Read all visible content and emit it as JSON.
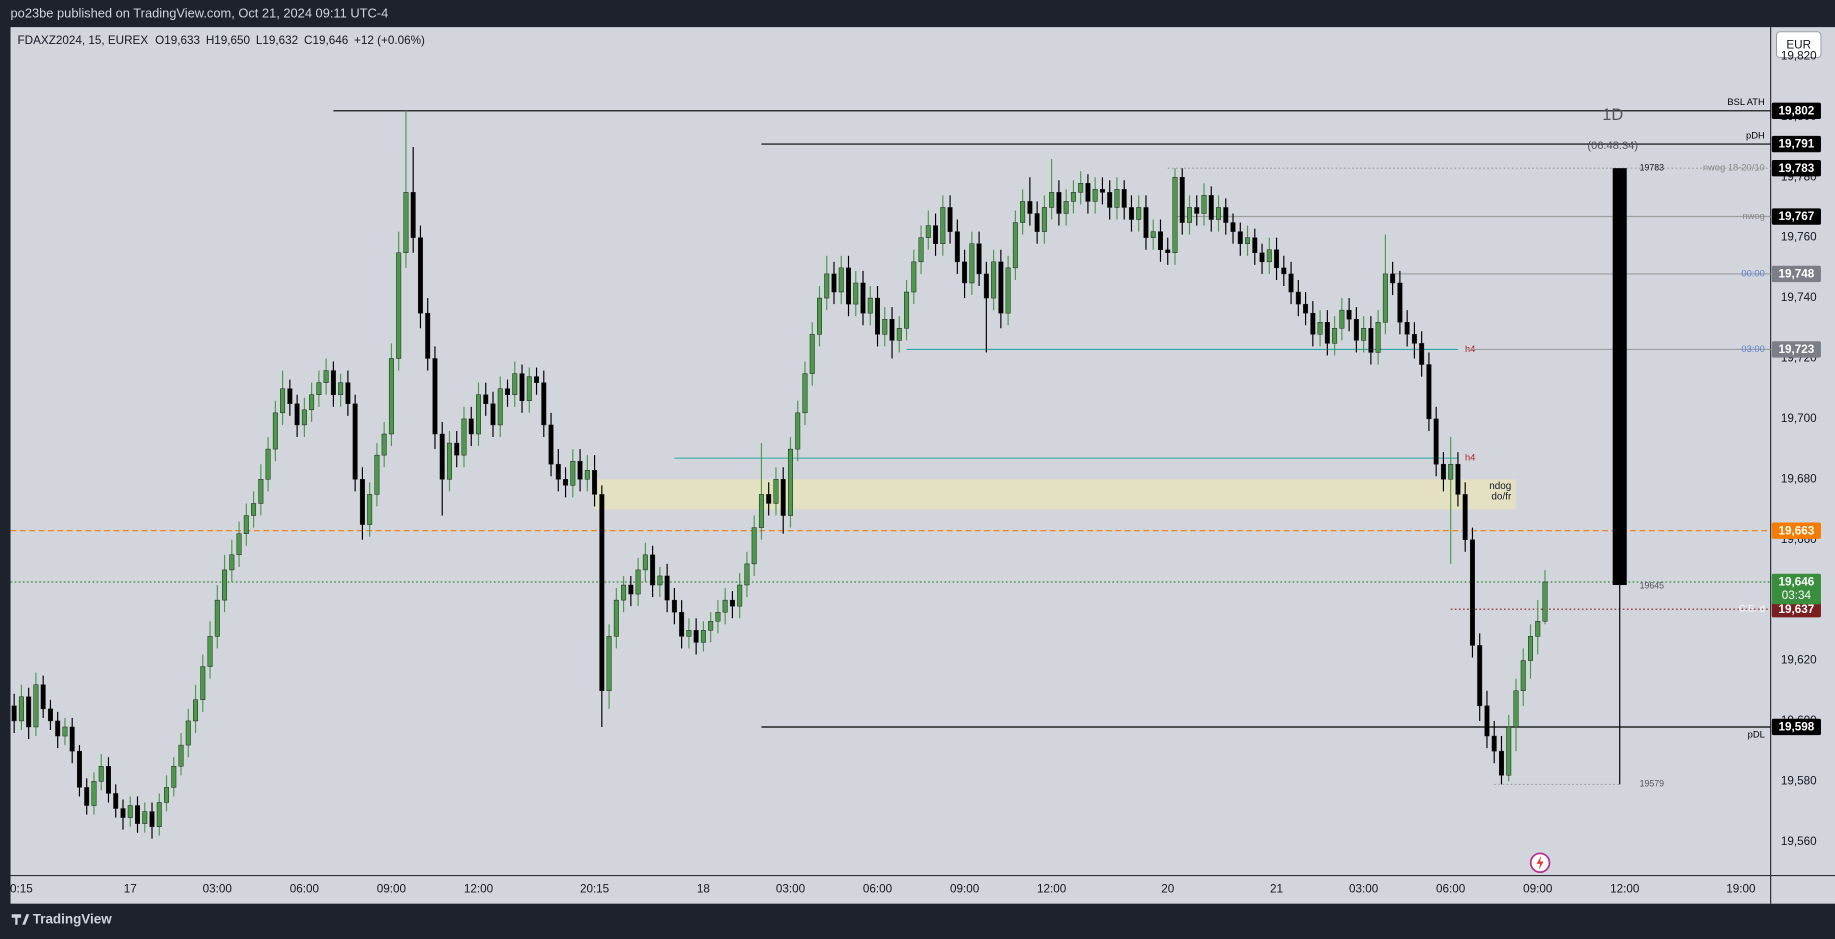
{
  "header": {
    "title": "po23be published on TradingView.com, Oct 21, 2024 09:11 UTC-4"
  },
  "footer": {
    "brand": "TradingView"
  },
  "chart_data": {
    "type": "candlestick",
    "legend": {
      "symbol": "FDAXZ2024, 15, EUREX",
      "open": "O19,633",
      "high": "H19,650",
      "low": "L19,632",
      "close": "C19,646",
      "change": "+12 (+0.06%)"
    },
    "currency": "EUR",
    "up_color": "#4a9a4a",
    "down_color": "#000000",
    "open": [
      19605,
      19600,
      19608,
      19598,
      19612,
      19604,
      19600,
      19595,
      19598,
      19590,
      19578,
      19572,
      19580,
      19585,
      19576,
      19571,
      19568,
      19572,
      19566,
      19570,
      19565,
      19573,
      19578,
      19585,
      19592,
      19600,
      19607,
      19618,
      19628,
      19640,
      19650,
      19655,
      19662,
      19668,
      19672,
      19680,
      19690,
      19702,
      19710,
      19705,
      19698,
      19703,
      19708,
      19712,
      19716,
      19708,
      19712,
      19705,
      19680,
      19665,
      19675,
      19688,
      19695,
      19720,
      19755,
      19775,
      19760,
      19735,
      19720,
      19695,
      19680,
      19692,
      19688,
      19700,
      19695,
      19708,
      19705,
      19698,
      19710,
      19708,
      19715,
      19706,
      19714,
      19712,
      19698,
      19685,
      19680,
      19678,
      19686,
      19680,
      19683,
      19675,
      19610,
      19628,
      19640,
      19645,
      19642,
      19650,
      19655,
      19645,
      19648,
      19640,
      19636,
      19628,
      19630,
      19626,
      19630,
      19633,
      19636,
      19640,
      19638,
      19645,
      19652,
      19664,
      19675,
      19672,
      19680,
      19668,
      19690,
      19702,
      19715,
      19728,
      19740,
      19748,
      19742,
      19750,
      19738,
      19745,
      19735,
      19740,
      19728,
      19733,
      19726,
      19730,
      19742,
      19752,
      19760,
      19764,
      19758,
      19770,
      19762,
      19752,
      19745,
      19758,
      19748,
      19740,
      19752,
      19735,
      19750,
      19765,
      19772,
      19768,
      19762,
      19770,
      19775,
      19768,
      19772,
      19775,
      19778,
      19772,
      19776,
      19775,
      19770,
      19776,
      19770,
      19766,
      19770,
      19760,
      19762,
      19756,
      19755,
      19780,
      19765,
      19770,
      19768,
      19774,
      19766,
      19770,
      19765,
      19762,
      19758,
      19760,
      19755,
      19752,
      19756,
      19750,
      19748,
      19742,
      19738,
      19735,
      19728,
      19732,
      19725,
      19730,
      19736,
      19733,
      19726,
      19730,
      19722,
      19732,
      19748,
      19745,
      19732,
      19728,
      19725,
      19718,
      19700,
      19685,
      19680,
      19685,
      19675,
      19660,
      19625,
      19605,
      19595,
      19590,
      19582,
      19598,
      19610,
      19620,
      19628,
      19633
    ],
    "high": [
      19609,
      19612,
      19611,
      19616,
      19615,
      19607,
      19603,
      19601,
      19601,
      19592,
      19581,
      19583,
      19589,
      19588,
      19579,
      19574,
      19575,
      19575,
      19573,
      19573,
      19576,
      19582,
      19588,
      19596,
      19604,
      19612,
      19622,
      19633,
      19645,
      19655,
      19660,
      19666,
      19672,
      19676,
      19685,
      19694,
      19706,
      19716,
      19713,
      19708,
      19707,
      19712,
      19716,
      19720,
      19719,
      19715,
      19716,
      19708,
      19684,
      19679,
      19692,
      19699,
      19725,
      19762,
      19802,
      19790,
      19764,
      19740,
      19724,
      19699,
      19696,
      19696,
      19704,
      19704,
      19712,
      19712,
      19709,
      19714,
      19713,
      19719,
      19718,
      19717,
      19717,
      19716,
      19702,
      19690,
      19684,
      19690,
      19690,
      19688,
      19688,
      19678,
      19632,
      19644,
      19648,
      19648,
      19654,
      19659,
      19658,
      19651,
      19652,
      19644,
      19640,
      19634,
      19634,
      19633,
      19636,
      19640,
      19644,
      19643,
      19649,
      19656,
      19668,
      19692,
      19679,
      19684,
      19684,
      19694,
      19706,
      19719,
      19732,
      19744,
      19754,
      19752,
      19754,
      19754,
      19749,
      19749,
      19744,
      19744,
      19737,
      19737,
      19734,
      19746,
      19756,
      19764,
      19769,
      19768,
      19774,
      19774,
      19766,
      19756,
      19762,
      19762,
      19752,
      19756,
      19756,
      19754,
      19769,
      19776,
      19780,
      19772,
      19774,
      19786,
      19779,
      19776,
      19779,
      19782,
      19781,
      19780,
      19780,
      19779,
      19780,
      19779,
      19774,
      19774,
      19774,
      19766,
      19766,
      19760,
      19783,
      19783,
      19774,
      19774,
      19778,
      19777,
      19774,
      19773,
      19768,
      19765,
      19764,
      19763,
      19758,
      19760,
      19760,
      19754,
      19752,
      19746,
      19742,
      19739,
      19736,
      19736,
      19734,
      19740,
      19740,
      19737,
      19734,
      19734,
      19736,
      19761,
      19752,
      19749,
      19736,
      19732,
      19729,
      19722,
      19704,
      19689,
      19694,
      19689,
      19679,
      19664,
      19629,
      19610,
      19600,
      19595,
      19602,
      19614,
      19624,
      19632,
      19640,
      19650
    ],
    "low": [
      19596,
      19597,
      19594,
      19595,
      19601,
      19597,
      19591,
      19592,
      19586,
      19575,
      19569,
      19569,
      19577,
      19573,
      19568,
      19564,
      19565,
      19563,
      19563,
      19561,
      19562,
      19570,
      19575,
      19582,
      19588,
      19596,
      19603,
      19614,
      19624,
      19636,
      19646,
      19651,
      19658,
      19664,
      19668,
      19676,
      19686,
      19698,
      19701,
      19694,
      19694,
      19699,
      19704,
      19708,
      19704,
      19704,
      19701,
      19676,
      19660,
      19661,
      19671,
      19684,
      19691,
      19716,
      19750,
      19755,
      19730,
      19716,
      19690,
      19668,
      19676,
      19684,
      19684,
      19691,
      19691,
      19701,
      19694,
      19694,
      19704,
      19704,
      19702,
      19702,
      19708,
      19694,
      19681,
      19676,
      19674,
      19674,
      19676,
      19676,
      19671,
      19598,
      19604,
      19624,
      19636,
      19638,
      19638,
      19646,
      19641,
      19641,
      19636,
      19632,
      19624,
      19624,
      19622,
      19623,
      19626,
      19629,
      19632,
      19634,
      19634,
      19641,
      19648,
      19660,
      19668,
      19668,
      19662,
      19664,
      19686,
      19698,
      19711,
      19724,
      19736,
      19738,
      19738,
      19734,
      19734,
      19731,
      19731,
      19724,
      19724,
      19720,
      19722,
      19726,
      19738,
      19748,
      19756,
      19754,
      19754,
      19758,
      19748,
      19740,
      19741,
      19744,
      19722,
      19736,
      19730,
      19731,
      19746,
      19761,
      19764,
      19758,
      19758,
      19766,
      19764,
      19764,
      19768,
      19771,
      19768,
      19768,
      19771,
      19766,
      19766,
      19766,
      19762,
      19762,
      19756,
      19756,
      19752,
      19751,
      19751,
      19761,
      19761,
      19764,
      19764,
      19762,
      19762,
      19761,
      19758,
      19754,
      19754,
      19751,
      19748,
      19748,
      19746,
      19744,
      19738,
      19734,
      19731,
      19724,
      19724,
      19721,
      19721,
      19726,
      19729,
      19722,
      19722,
      19718,
      19718,
      19728,
      19741,
      19728,
      19724,
      19720,
      19714,
      19696,
      19681,
      19676,
      19652,
      19671,
      19656,
      19621,
      19600,
      19591,
      19586,
      19579,
      19580,
      19590,
      19605,
      19614,
      19622,
      19632
    ],
    "close": [
      19600,
      19608,
      19598,
      19612,
      19604,
      19600,
      19595,
      19598,
      19590,
      19578,
      19572,
      19580,
      19585,
      19576,
      19571,
      19568,
      19572,
      19566,
      19570,
      19565,
      19573,
      19578,
      19585,
      19592,
      19600,
      19607,
      19618,
      19628,
      19640,
      19650,
      19655,
      19662,
      19668,
      19672,
      19680,
      19690,
      19702,
      19710,
      19705,
      19698,
      19703,
      19708,
      19712,
      19716,
      19708,
      19712,
      19705,
      19680,
      19665,
      19675,
      19688,
      19695,
      19720,
      19755,
      19775,
      19760,
      19735,
      19720,
      19695,
      19680,
      19692,
      19688,
      19700,
      19695,
      19708,
      19705,
      19698,
      19710,
      19708,
      19715,
      19706,
      19714,
      19712,
      19698,
      19685,
      19680,
      19678,
      19686,
      19680,
      19683,
      19675,
      19610,
      19628,
      19640,
      19645,
      19642,
      19650,
      19655,
      19645,
      19648,
      19640,
      19636,
      19628,
      19630,
      19626,
      19630,
      19633,
      19636,
      19640,
      19638,
      19645,
      19652,
      19664,
      19675,
      19672,
      19680,
      19668,
      19690,
      19702,
      19715,
      19728,
      19740,
      19748,
      19742,
      19750,
      19738,
      19745,
      19735,
      19740,
      19728,
      19733,
      19726,
      19730,
      19742,
      19752,
      19760,
      19764,
      19758,
      19770,
      19762,
      19752,
      19745,
      19758,
      19748,
      19740,
      19752,
      19735,
      19750,
      19765,
      19772,
      19768,
      19762,
      19770,
      19775,
      19768,
      19772,
      19775,
      19778,
      19772,
      19776,
      19775,
      19770,
      19776,
      19770,
      19766,
      19770,
      19760,
      19762,
      19756,
      19755,
      19780,
      19765,
      19770,
      19768,
      19774,
      19766,
      19770,
      19765,
      19762,
      19758,
      19760,
      19755,
      19752,
      19756,
      19750,
      19748,
      19742,
      19738,
      19735,
      19728,
      19732,
      19725,
      19730,
      19736,
      19733,
      19726,
      19730,
      19722,
      19732,
      19748,
      19745,
      19732,
      19728,
      19725,
      19718,
      19700,
      19685,
      19680,
      19685,
      19675,
      19660,
      19625,
      19605,
      19595,
      19590,
      19582,
      19598,
      19610,
      19620,
      19628,
      19633,
      19646
    ],
    "xlim": [
      -0.5,
      242.1
    ],
    "xticks": [
      {
        "value": 1,
        "label": "0:15"
      },
      {
        "value": 16,
        "label": "17"
      },
      {
        "value": 28,
        "label": "03:00"
      },
      {
        "value": 40,
        "label": "06:00"
      },
      {
        "value": 52,
        "label": "09:00"
      },
      {
        "value": 64,
        "label": "12:00"
      },
      {
        "value": 80,
        "label": "20:15"
      },
      {
        "value": 95,
        "label": "18"
      },
      {
        "value": 107,
        "label": "03:00"
      },
      {
        "value": 119,
        "label": "06:00"
      },
      {
        "value": 131,
        "label": "09:00"
      },
      {
        "value": 143,
        "label": "12:00"
      },
      {
        "value": 159,
        "label": "20"
      },
      {
        "value": 174,
        "label": "21"
      },
      {
        "value": 186,
        "label": "03:00"
      },
      {
        "value": 198,
        "label": "06:00"
      },
      {
        "value": 210,
        "label": "09:00"
      },
      {
        "value": 222,
        "label": "12:00"
      },
      {
        "value": 238,
        "label": "19:00"
      }
    ],
    "ylim": [
      19548.8,
      19829.7
    ],
    "yticks": [
      {
        "value": 19560,
        "label": "19,560"
      },
      {
        "value": 19580,
        "label": "19,580"
      },
      {
        "value": 19600,
        "label": "19,600"
      },
      {
        "value": 19620,
        "label": "19,620"
      },
      {
        "value": 19640,
        "label": "19,640"
      },
      {
        "value": 19660,
        "label": "19,660"
      },
      {
        "value": 19680,
        "label": "19,680"
      },
      {
        "value": 19700,
        "label": "19,700"
      },
      {
        "value": 19720,
        "label": "19,720"
      },
      {
        "value": 19740,
        "label": "19,740"
      },
      {
        "value": 19760,
        "label": "19,760"
      },
      {
        "value": 19780,
        "label": "19,780"
      },
      {
        "value": 19800,
        "label": "19,800"
      },
      {
        "value": 19820,
        "label": "19,820"
      }
    ],
    "grid": false,
    "zone": {
      "labels": [
        "ndog",
        "do/fr"
      ],
      "low": 19670,
      "high": 19680,
      "start": 80,
      "end": 207,
      "color": "#e6e2bd"
    },
    "h4_lines": [
      {
        "value": 19723,
        "start": 123,
        "end": 199,
        "label": "h4",
        "color": "#26a6a6",
        "label_color": "#b22222"
      },
      {
        "value": 19687,
        "start": 91,
        "end": 199,
        "label": "h4",
        "color": "#26a6a6",
        "label_color": "#b22222"
      }
    ],
    "levels": [
      {
        "value": 19637,
        "tag": "19,637",
        "tag_color": "#7a1f1f",
        "label": "C.E. d",
        "label_color": "#ffffff",
        "label_pos": "on",
        "line_color": "#8b2a2a",
        "style": "dotted",
        "start": 198
      },
      {
        "value": 19663,
        "tag": "19,663",
        "tag_color": "#f57c00",
        "line_color": "#f57c00",
        "style": "dashed",
        "start": -0.5
      },
      {
        "value": 19646,
        "tag": "19,646",
        "time": "03:34",
        "tag_color": "#388e3c",
        "line_color": "#388e3c",
        "style": "dotted",
        "start": -0.5
      },
      {
        "value": 19802,
        "tag": "19,802",
        "tag_color": "#000000",
        "label": "BSL ATH",
        "label_color": "#000000",
        "label_pos": "above",
        "line_color": "#000000",
        "style": "solid",
        "start": 44
      },
      {
        "value": 19791,
        "tag": "19,791",
        "tag_color": "#000000",
        "label": "pDH",
        "label_color": "#000000",
        "label_pos": "above",
        "line_color": "#000000",
        "style": "solid",
        "start": 103
      },
      {
        "value": 19783,
        "tag": "19,783",
        "tag_color": "#000000",
        "label": "nwog 18-20/10",
        "label_color": "#8a8a8a",
        "label_pos": "on",
        "line_color": "#9e9e9e",
        "style": "dotted",
        "start": 159
      },
      {
        "value": 19767,
        "tag": "19,767",
        "tag_color": "#000000",
        "label": "nwog",
        "label_color": "#8a8a8a",
        "label_pos": "on",
        "line_color": "#9e9e9e",
        "style": "solid",
        "start": 160
      },
      {
        "value": 19748,
        "tag": "19,748",
        "tag_color": "#7b7e87",
        "label": "00:00",
        "label_color": "#5b7fd6",
        "label_pos": "on",
        "line_color": "#9e9e9e",
        "style": "solid",
        "start": 190
      },
      {
        "value": 19723,
        "tag": "19,723",
        "tag_color": "#7b7e87",
        "label": "03:00",
        "label_color": "#5b7fd6",
        "label_pos": "on",
        "line_color": "#9e9e9e",
        "style": "solid",
        "start": 200
      },
      {
        "value": 19598,
        "tag": "19,598",
        "tag_color": "#000000",
        "label": "pDL",
        "label_color": "#000000",
        "label_pos": "below",
        "line_color": "#000000",
        "style": "solid",
        "start": 103
      }
    ],
    "daily_candle": {
      "label": "1D",
      "countdown": "(06:48:34)",
      "x": 221.3,
      "open": 19783,
      "high": 19783,
      "low": 19579,
      "close": 19645,
      "open_label": "19783",
      "close_label": "19645",
      "low_label": "19579",
      "low_line_start": 204,
      "color": "#000000"
    }
  }
}
